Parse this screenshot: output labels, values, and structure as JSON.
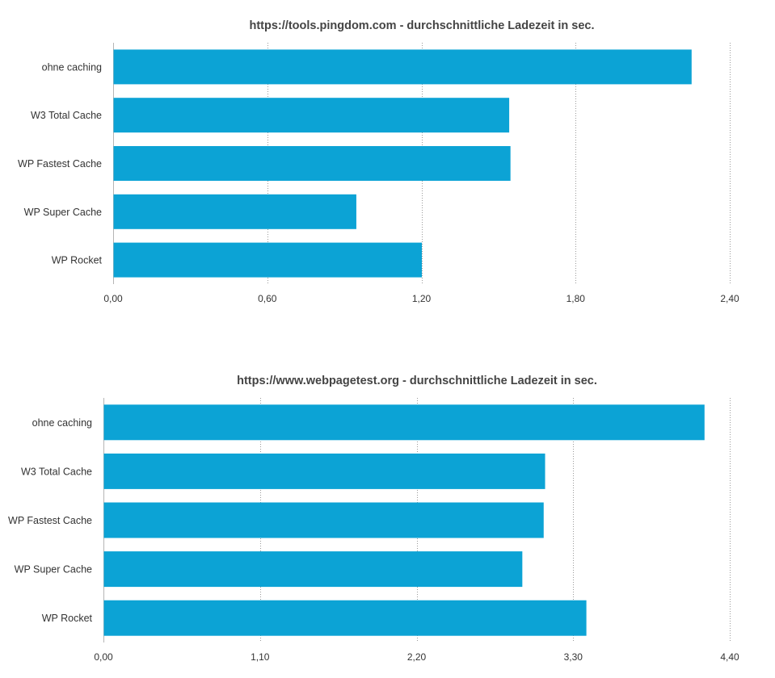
{
  "chart_data": [
    {
      "type": "bar",
      "orientation": "horizontal",
      "title": "https://tools.pingdom.com - durchschnittliche Ladezeit in sec.",
      "categories": [
        "ohne caching",
        "W3 Total Cache",
        "WP Fastest Cache",
        "WP Super Cache",
        "WP Rocket"
      ],
      "values": [
        2.25,
        1.54,
        1.545,
        0.945,
        1.2
      ],
      "xlim": [
        0,
        2.4
      ],
      "ticks": [
        "0,00",
        "0,60",
        "1,20",
        "1,80",
        "2,40"
      ],
      "tick_values": [
        0,
        0.6,
        1.2,
        1.8,
        2.4
      ],
      "grid": true,
      "bar_color": "#0ca3d5"
    },
    {
      "type": "bar",
      "orientation": "horizontal",
      "title": "https://www.webpagetest.org - durchschnittliche Ladezeit in sec.",
      "categories": [
        "ohne caching",
        "W3 Total Cache",
        "WP Fastest Cache",
        "WP Super Cache",
        "WP Rocket"
      ],
      "values": [
        4.22,
        3.1,
        3.09,
        2.94,
        3.39
      ],
      "xlim": [
        0,
        4.4
      ],
      "ticks": [
        "0,00",
        "1,10",
        "2,20",
        "3,30",
        "4,40"
      ],
      "tick_values": [
        0,
        1.1,
        2.2,
        3.3,
        4.4
      ],
      "grid": true,
      "bar_color": "#0ca3d5"
    }
  ]
}
